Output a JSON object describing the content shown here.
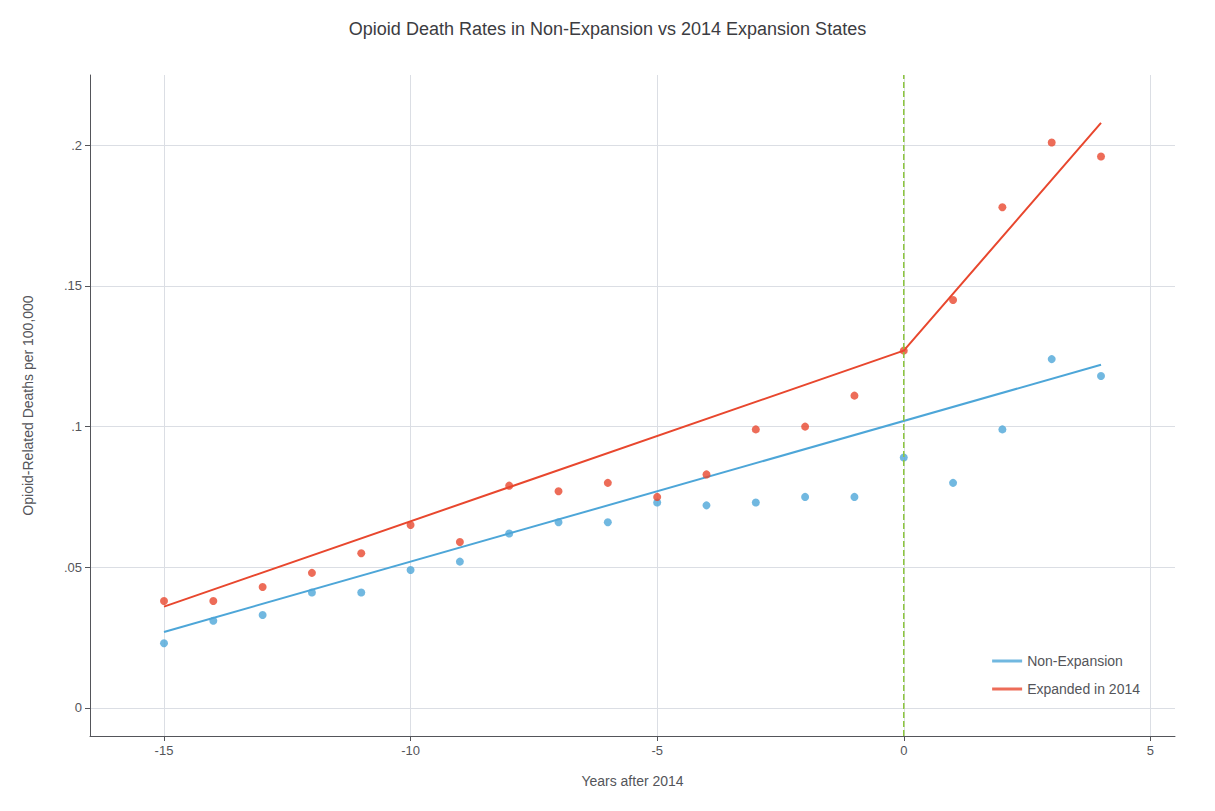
{
  "chart_data": {
    "type": "scatter",
    "title": "Opioid Death Rates in Non-Expansion vs 2014 Expansion States",
    "xlabel": "Years after 2014",
    "ylabel": "Opioid-Related Deaths per 100,000",
    "xlim": [
      -16.5,
      5.5
    ],
    "ylim": [
      -0.01,
      0.225
    ],
    "xticks": [
      -15,
      -10,
      -5,
      0,
      5
    ],
    "yticks": [
      0,
      {
        "value": 0.05,
        "label": ".05"
      },
      {
        "value": 0.1,
        "label": ".1"
      },
      {
        "value": 0.15,
        "label": ".15"
      },
      {
        "value": 0.2,
        "label": ".2"
      }
    ],
    "grid": true,
    "legend": "lower right",
    "series": [
      {
        "name": "Non-Expansion",
        "color": "#4da6d8",
        "x": [
          -15,
          -14,
          -13,
          -12,
          -11,
          -10,
          -9,
          -8,
          -7,
          -6,
          -5,
          -4,
          -3,
          -2,
          -1,
          0,
          1,
          2,
          3,
          4
        ],
        "values": [
          0.023,
          0.031,
          0.033,
          0.041,
          0.041,
          0.049,
          0.052,
          0.062,
          0.066,
          0.066,
          0.073,
          0.072,
          0.073,
          0.075,
          0.075,
          0.089,
          0.08,
          0.099,
          0.124,
          0.118
        ],
        "trend_x": [
          -15,
          4
        ],
        "trend_values": [
          0.027,
          0.122
        ]
      },
      {
        "name": "Expanded in 2014",
        "color": "#e8472e",
        "x": [
          -15,
          -14,
          -13,
          -12,
          -11,
          -10,
          -9,
          -8,
          -7,
          -6,
          -5,
          -4,
          -3,
          -2,
          -1,
          0,
          1,
          2,
          3,
          4
        ],
        "values": [
          0.038,
          0.038,
          0.043,
          0.048,
          0.055,
          0.065,
          0.059,
          0.079,
          0.077,
          0.08,
          0.075,
          0.083,
          0.099,
          0.1,
          0.111,
          0.127,
          0.145,
          0.178,
          0.201,
          0.196
        ],
        "trend_x": [
          -15,
          0,
          4
        ],
        "trend_values": [
          0.036,
          0.127,
          0.208
        ]
      }
    ],
    "vline": {
      "x": 0,
      "color": "#8dc63f",
      "line_style": "dashed"
    }
  }
}
